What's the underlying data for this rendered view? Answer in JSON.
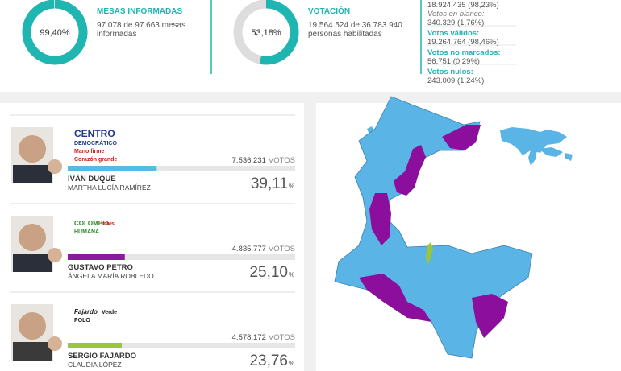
{
  "summary": {
    "mesas": {
      "percent": 99.4,
      "percent_label": "99,40%",
      "title": "MESAS INFORMADAS",
      "lines": [
        "97.078 de 97.663 mesas",
        "informadas"
      ]
    },
    "votacion": {
      "percent": 53.18,
      "percent_label": "53,18%",
      "title": "VOTACIÓN",
      "lines": [
        "19.564.524 de 36.783.940",
        "personas habilitadas"
      ]
    },
    "breakdown": [
      {
        "value": "18.924.435   (98,23%)"
      },
      {
        "label": "Votos en blanco:",
        "value": "340.329   (1,76%)"
      },
      {
        "label": "Votos válidos:",
        "value": "19.264.764   (98,46%)"
      },
      {
        "label": "Votos no marcados:",
        "value": "56.751   (0,29%)"
      },
      {
        "label": "Votos nulos:",
        "value": "243.009   (1,24%)"
      }
    ]
  },
  "candidates": [
    {
      "logo": [
        "CENTRO",
        "DEMOCRÁTICO",
        "Mano firme",
        "Corazón grande"
      ],
      "votes": "7.536.231",
      "votes_unit": "VOTOS",
      "name": "IVÁN DUQUE",
      "running_mate": "MARTHA LUCÍA RAMÍREZ",
      "percent": 39.11,
      "percent_label": "39,11",
      "percent_unit": "%",
      "color": "#56b9e6"
    },
    {
      "logo": [
        "COLOMBIA",
        "HUMANA",
        "mais"
      ],
      "votes": "4.835.777",
      "votes_unit": "VOTOS",
      "name": "GUSTAVO PETRO",
      "running_mate": "ÁNGELA MARÍA ROBLEDO",
      "percent": 25.1,
      "percent_label": "25,10",
      "percent_unit": "%",
      "color": "#8a1a9e"
    },
    {
      "logo": [
        "Fajardo",
        "POLO",
        "Verde"
      ],
      "votes": "4.578.172",
      "votes_unit": "VOTOS",
      "name": "SERGIO FAJARDO",
      "running_mate": "CLAUDIA LÓPEZ",
      "percent": 23.76,
      "percent_label": "23,76",
      "percent_unit": "%",
      "color": "#9bc53d"
    }
  ]
}
